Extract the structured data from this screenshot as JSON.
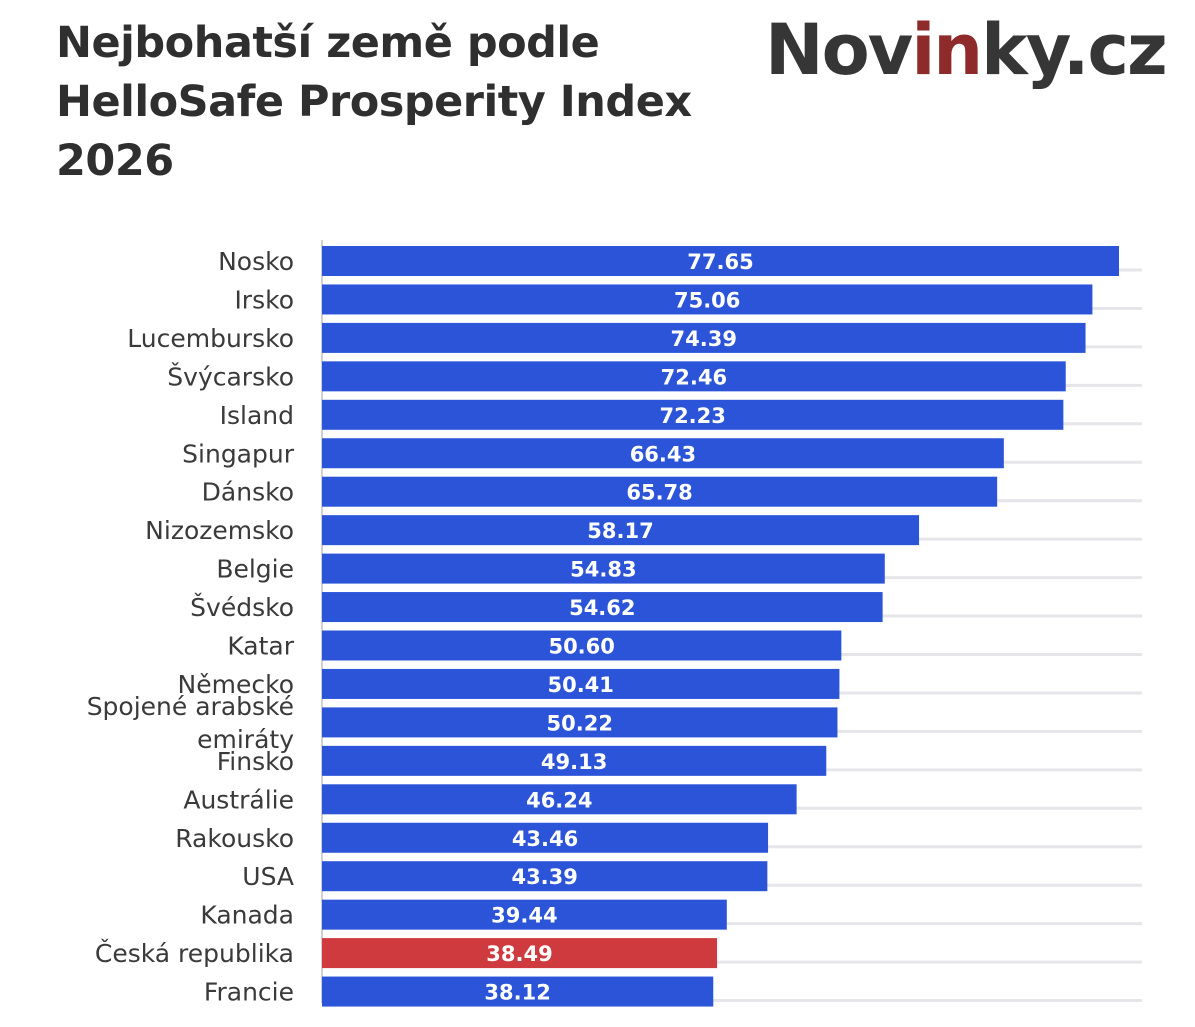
{
  "header": {
    "title_lines": [
      "Nejbohatší země podle",
      "HelloSafe Prosperity Index",
      "2026"
    ],
    "logo": {
      "part1": "Nov",
      "accent": "in",
      "part2": "ky.cz"
    }
  },
  "colors": {
    "bar": "#2b54d9",
    "highlight": "#cf3a3e",
    "grid": "#e6e6ea",
    "axis": "#cfcfd4"
  },
  "chart_data": {
    "type": "bar",
    "orientation": "horizontal",
    "title": "Nejbohatší země podle HelloSafe Prosperity Index 2026",
    "xlabel": "",
    "ylabel": "",
    "xlim": [
      0,
      80
    ],
    "grid": true,
    "highlight_category": "Česká republika",
    "categories": [
      "Nosko",
      "Irsko",
      "Lucembursko",
      "Švýcarsko",
      "Island",
      "Singapur",
      "Dánsko",
      "Nizozemsko",
      "Belgie",
      "Švédsko",
      "Katar",
      "Německo",
      "Spojené arabské emiráty",
      "Finsko",
      "Austrálie",
      "Rakousko",
      "USA",
      "Kanada",
      "Česká republika",
      "Francie"
    ],
    "category_label_lines": [
      [
        "Nosko"
      ],
      [
        "Irsko"
      ],
      [
        "Lucembursko"
      ],
      [
        "Švýcarsko"
      ],
      [
        "Island"
      ],
      [
        "Singapur"
      ],
      [
        "Dánsko"
      ],
      [
        "Nizozemsko"
      ],
      [
        "Belgie"
      ],
      [
        "Švédsko"
      ],
      [
        "Katar"
      ],
      [
        "Německo"
      ],
      [
        "Spojené arabské",
        "emiráty"
      ],
      [
        "Finsko"
      ],
      [
        "Austrálie"
      ],
      [
        "Rakousko"
      ],
      [
        "USA"
      ],
      [
        "Kanada"
      ],
      [
        "Česká republika"
      ],
      [
        "Francie"
      ]
    ],
    "values": [
      77.65,
      75.06,
      74.39,
      72.46,
      72.23,
      66.43,
      65.78,
      58.17,
      54.83,
      54.62,
      50.6,
      50.41,
      50.22,
      49.13,
      46.24,
      43.46,
      43.39,
      39.44,
      38.49,
      38.12
    ],
    "value_labels": [
      "77.65",
      "75.06",
      "74.39",
      "72.46",
      "72.23",
      "66.43",
      "65.78",
      "58.17",
      "54.83",
      "54.62",
      "50.60",
      "50.41",
      "50.22",
      "49.13",
      "46.24",
      "43.46",
      "43.39",
      "39.44",
      "38.49",
      "38.12"
    ]
  }
}
